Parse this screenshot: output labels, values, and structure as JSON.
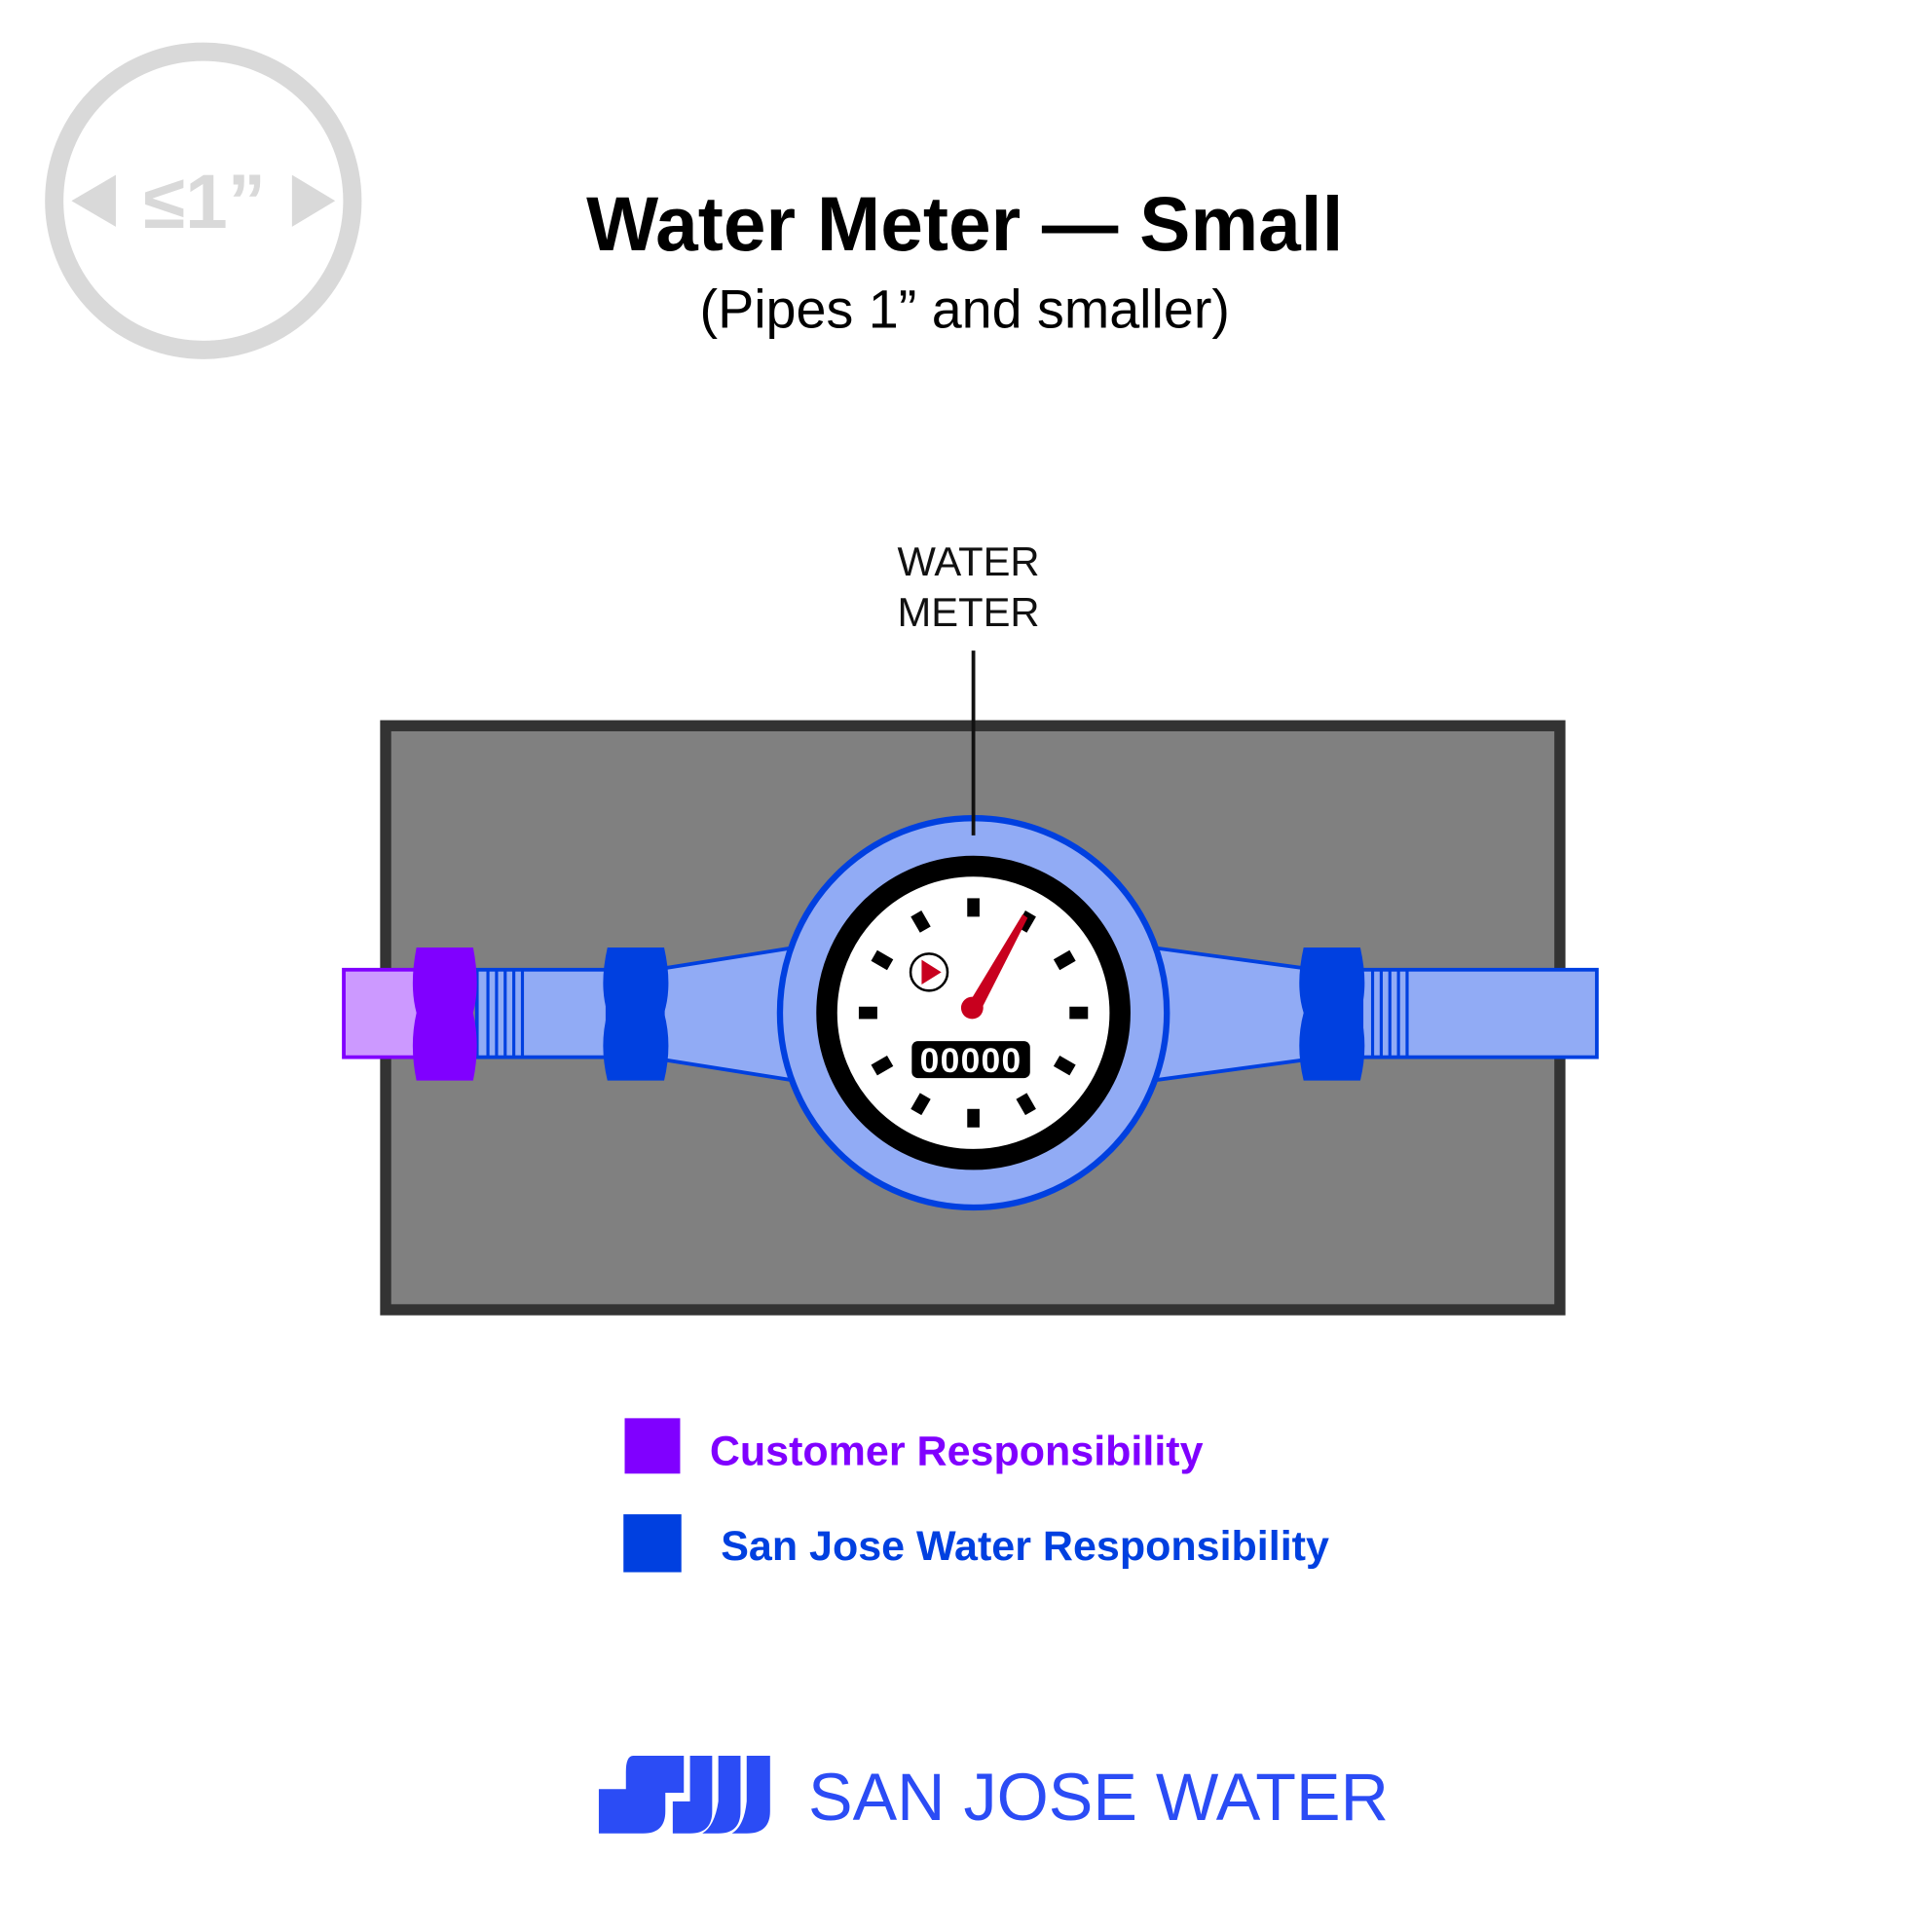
{
  "size_icon": {
    "text": "≤1”",
    "icon": "pipe-diameter-icon",
    "color": "#d9d9d9"
  },
  "header": {
    "title": "Water Meter — Small",
    "subtitle": "(Pipes 1” and smaller)"
  },
  "callout": {
    "line1": "WATER",
    "line2": "METER"
  },
  "meter": {
    "odometer": "00000"
  },
  "legend": [
    {
      "label": "Customer Responsibility",
      "color": "#8000ff"
    },
    {
      "label": "San Jose Water Responsibility",
      "color": "#0040e0"
    }
  ],
  "colors": {
    "vault_fill": "#808080",
    "vault_border": "#333333",
    "pipe_fill": "#91abf5",
    "customer_pipe_fill": "#cc99ff",
    "needle": "#c8001e"
  },
  "logo": {
    "mark": "SJW",
    "text": "SAN JOSE WATER",
    "color": "#2b4cf5"
  }
}
